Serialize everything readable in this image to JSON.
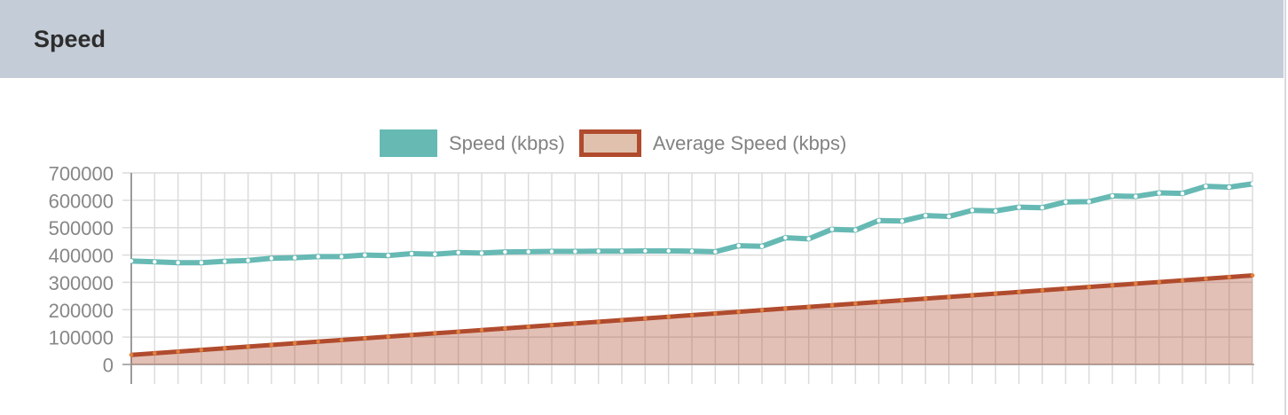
{
  "panel": {
    "title": "Speed"
  },
  "legend": {
    "items": [
      {
        "label": "Speed (kbps)",
        "swatch": "solid-teal"
      },
      {
        "label": "Average Speed (kbps)",
        "swatch": "outlined-brick-with-tan-fill"
      }
    ]
  },
  "colors": {
    "header_bg": "#c4ccd7",
    "speed_line": "#67b9b4",
    "speed_dot": "#ffffff",
    "avg_line": "#b04b2e",
    "avg_fill": "rgba(175, 75, 45, 0.35)",
    "avg_fill_legend": "#e0c1ae",
    "avg_dot": "#e0803c",
    "grid": "#dcdcdc",
    "axis": "#9b9b9b",
    "zero_line": "#b3aeab",
    "tick_text": "#878787",
    "legend_text": "#828282",
    "title_text": "#2d2d2d"
  },
  "chart_data": {
    "type": "line",
    "title": "Speed",
    "xlabel": "",
    "ylabel": "",
    "x_labels_visible": false,
    "points": 49,
    "ylim": [
      0,
      700000
    ],
    "y_ticks": [
      700000,
      600000,
      500000,
      400000,
      300000,
      200000,
      100000,
      0
    ],
    "y_tick_labels": [
      "700000",
      "600000",
      "500000",
      "400000",
      "300000",
      "200000",
      "100000",
      "0"
    ],
    "grid": true,
    "legend_position": "top",
    "series": [
      {
        "name": "Speed (kbps)",
        "style": "line-with-white-dots",
        "values": [
          378000,
          375000,
          372000,
          372000,
          377000,
          380000,
          388000,
          390000,
          394000,
          394000,
          400000,
          398000,
          405000,
          403000,
          409000,
          407000,
          411000,
          412000,
          413000,
          413000,
          414000,
          414000,
          415000,
          415000,
          414000,
          412000,
          434000,
          432000,
          463000,
          459000,
          494000,
          491000,
          526000,
          524000,
          544000,
          541000,
          563000,
          561000,
          575000,
          573000,
          594000,
          595000,
          616000,
          614000,
          627000,
          625000,
          651000,
          648000,
          660000
        ]
      },
      {
        "name": "Average Speed (kbps)",
        "style": "area-with-orange-dots",
        "values": [
          35000,
          41050,
          47100,
          53150,
          59200,
          65250,
          71300,
          77350,
          83400,
          89450,
          95500,
          101550,
          107600,
          113650,
          119700,
          125750,
          131800,
          137850,
          143900,
          149950,
          156000,
          162050,
          168100,
          174150,
          180200,
          186250,
          192300,
          198350,
          204400,
          210450,
          216500,
          222550,
          228600,
          234650,
          240700,
          246750,
          252800,
          258850,
          264900,
          270950,
          277000,
          283050,
          289100,
          295150,
          301200,
          307250,
          313300,
          319350,
          325400
        ]
      }
    ]
  }
}
